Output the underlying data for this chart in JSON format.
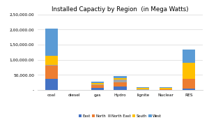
{
  "title": "Installed Capactiy by Region  (in Mega Watts)",
  "categories": [
    "coal",
    "diesel",
    "gas",
    "Hydro",
    "lignite",
    "Nuclear",
    "RES"
  ],
  "regions": [
    "East",
    "North",
    "North East",
    "South",
    "West"
  ],
  "colors": [
    "#4472c4",
    "#ed7d31",
    "#a5a5a5",
    "#ffc000",
    "#5b9bd5"
  ],
  "data": {
    "East": [
      38000,
      200,
      7000,
      12000,
      500,
      1000,
      4000
    ],
    "North": [
      42000,
      200,
      9000,
      14000,
      500,
      2000,
      32000
    ],
    "North East": [
      4000,
      50,
      2000,
      8000,
      300,
      300,
      1500
    ],
    "South": [
      28000,
      150,
      4500,
      4500,
      6500,
      3500,
      52000
    ],
    "West": [
      90000,
      100,
      5000,
      8000,
      500,
      1500,
      45000
    ]
  },
  "ylim": [
    0,
    250000
  ],
  "yticks": [
    0,
    50000,
    100000,
    150000,
    200000,
    250000
  ],
  "background_color": "#ffffff",
  "title_fontsize": 6.2,
  "tick_fontsize": 4.2,
  "legend_fontsize": 3.8,
  "bar_width": 0.55
}
